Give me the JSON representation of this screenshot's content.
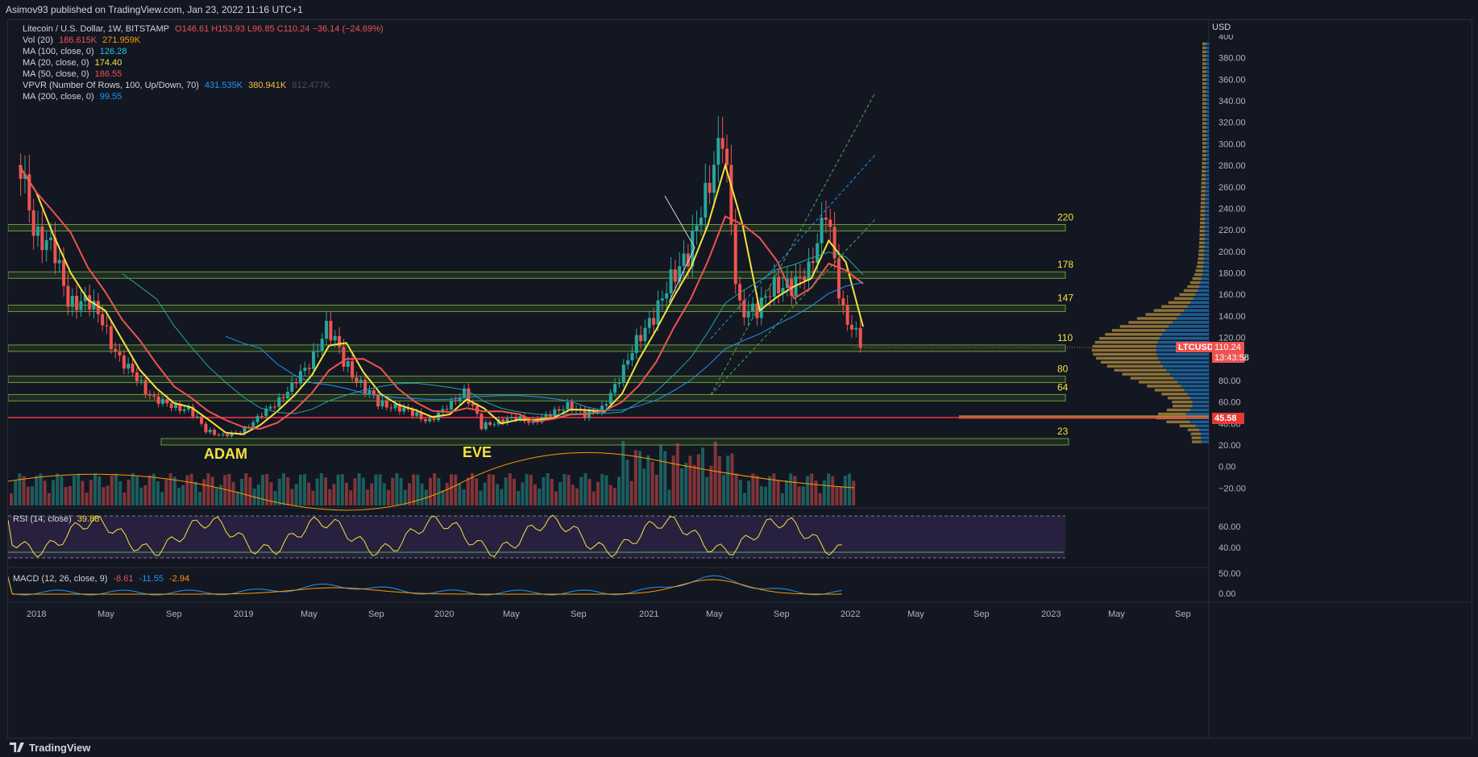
{
  "header": {
    "publish_line": "Asimov93 published on TradingView.com, Jan 23, 2022 11:16 UTC+1"
  },
  "legend": {
    "symbol": "Litecoin / U.S. Dollar, 1W, BITSTAMP",
    "ohlc": "O146.61 H153.93 L96.85 C110.24 −36.14 (−24.69%)",
    "vol_label": "Vol (20)",
    "vol_value1": "186.615K",
    "vol_value2": "271.959K",
    "ma100_label": "MA (100, close, 0)",
    "ma100_value": "126.28",
    "ma20_label": "MA (20, close, 0)",
    "ma20_value": "174.40",
    "ma50_label": "MA (50, close, 0)",
    "ma50_value": "186.55",
    "vpvr_label": "VPVR (Number Of Rows, 100, Up/Down, 70)",
    "vpvr_value1": "431.535K",
    "vpvr_value2": "380.941K",
    "vpvr_value3": "812.477K",
    "ma200_label": "MA (200, close, 0)",
    "ma200_value": "99.55"
  },
  "rsi_legend": {
    "label": "RSI (14, close)",
    "value": "39.88"
  },
  "macd_legend": {
    "label": "MACD (12, 26, close, 9)",
    "v1": "-8.61",
    "v2": "-11.55",
    "v3": "-2.94"
  },
  "price_tags": {
    "symbol": "LTCUSD",
    "price": "110.24",
    "countdown": "13:43:58",
    "line_price": "45.58",
    "currency": "USD"
  },
  "annotations": {
    "adam": "ADAM",
    "eve": "EVE"
  },
  "footer": {
    "brand": "TradingView"
  },
  "colors": {
    "bg": "#131722",
    "up": "#26a69a",
    "down": "#ef5350",
    "ma20": "#f3e33d",
    "ma50": "#ef5350",
    "ma100": "#26a69a",
    "ma200": "#2196f3",
    "zone": "#7dbb3a",
    "vpvr_up": "#1f6fb3",
    "vpvr_down": "#b8923d",
    "rsi_fill": "#3d2a5c"
  },
  "chart_data": {
    "type": "candlestick",
    "timeframe": "1W",
    "x_axis_labels": [
      "2018",
      "May",
      "Sep",
      "2019",
      "May",
      "Sep",
      "2020",
      "May",
      "Sep",
      "2021",
      "May",
      "Sep",
      "2022",
      "May",
      "Sep",
      "2023",
      "May",
      "Sep"
    ],
    "price_axis_ticks": [
      "400",
      "380.00",
      "360.00",
      "340.00",
      "320.00",
      "300.00",
      "280.00",
      "260.00",
      "240.00",
      "220.00",
      "200.00",
      "180.00",
      "160.00",
      "140.00",
      "120.00",
      "100.00",
      "80.00",
      "60.00",
      "40.00",
      "20.00",
      "0.00",
      "−20.00"
    ],
    "rsi_axis_ticks": [
      "60.00",
      "40.00"
    ],
    "macd_axis_ticks": [
      "50.00",
      "0.00"
    ],
    "ylim": [
      -20,
      400
    ],
    "horizontal_levels": [
      {
        "label": "220",
        "value": 222
      },
      {
        "label": "178",
        "value": 178
      },
      {
        "label": "147",
        "value": 147
      },
      {
        "label": "110",
        "value": 110
      },
      {
        "label": "80",
        "value": 81
      },
      {
        "label": "64",
        "value": 64
      },
      {
        "label": "23",
        "value": 23
      }
    ],
    "red_line": 45.58,
    "close_path": [
      {
        "t": "2017-12",
        "v": 280
      },
      {
        "t": "2018-01",
        "v": 230
      },
      {
        "t": "2018-02",
        "v": 200
      },
      {
        "t": "2018-03",
        "v": 160
      },
      {
        "t": "2018-04",
        "v": 150
      },
      {
        "t": "2018-05",
        "v": 140
      },
      {
        "t": "2018-06",
        "v": 95
      },
      {
        "t": "2018-07",
        "v": 85
      },
      {
        "t": "2018-08",
        "v": 60
      },
      {
        "t": "2018-09",
        "v": 58
      },
      {
        "t": "2018-10",
        "v": 52
      },
      {
        "t": "2018-11",
        "v": 35
      },
      {
        "t": "2018-12",
        "v": 28
      },
      {
        "t": "2019-01",
        "v": 32
      },
      {
        "t": "2019-02",
        "v": 45
      },
      {
        "t": "2019-03",
        "v": 58
      },
      {
        "t": "2019-04",
        "v": 75
      },
      {
        "t": "2019-05",
        "v": 95
      },
      {
        "t": "2019-06",
        "v": 130
      },
      {
        "t": "2019-07",
        "v": 100
      },
      {
        "t": "2019-08",
        "v": 75
      },
      {
        "t": "2019-09",
        "v": 60
      },
      {
        "t": "2019-10",
        "v": 55
      },
      {
        "t": "2019-11",
        "v": 50
      },
      {
        "t": "2019-12",
        "v": 42
      },
      {
        "t": "2020-01",
        "v": 55
      },
      {
        "t": "2020-02",
        "v": 70
      },
      {
        "t": "2020-03",
        "v": 38
      },
      {
        "t": "2020-04",
        "v": 42
      },
      {
        "t": "2020-05",
        "v": 45
      },
      {
        "t": "2020-06",
        "v": 42
      },
      {
        "t": "2020-07",
        "v": 48
      },
      {
        "t": "2020-08",
        "v": 58
      },
      {
        "t": "2020-09",
        "v": 47
      },
      {
        "t": "2020-10",
        "v": 55
      },
      {
        "t": "2020-11",
        "v": 80
      },
      {
        "t": "2020-12",
        "v": 120
      },
      {
        "t": "2021-01",
        "v": 135
      },
      {
        "t": "2021-02",
        "v": 180
      },
      {
        "t": "2021-03",
        "v": 190
      },
      {
        "t": "2021-04",
        "v": 260
      },
      {
        "t": "2021-05",
        "v": 300
      },
      {
        "t": "2021-06",
        "v": 150
      },
      {
        "t": "2021-07",
        "v": 140
      },
      {
        "t": "2021-08",
        "v": 175
      },
      {
        "t": "2021-09",
        "v": 160
      },
      {
        "t": "2021-10",
        "v": 190
      },
      {
        "t": "2021-11",
        "v": 230
      },
      {
        "t": "2021-12",
        "v": 150
      },
      {
        "t": "2022-01",
        "v": 110
      }
    ],
    "ma20_last": 174.4,
    "ma50_last": 186.55,
    "ma100_last": 126.28,
    "ma200_last": 99.55
  }
}
